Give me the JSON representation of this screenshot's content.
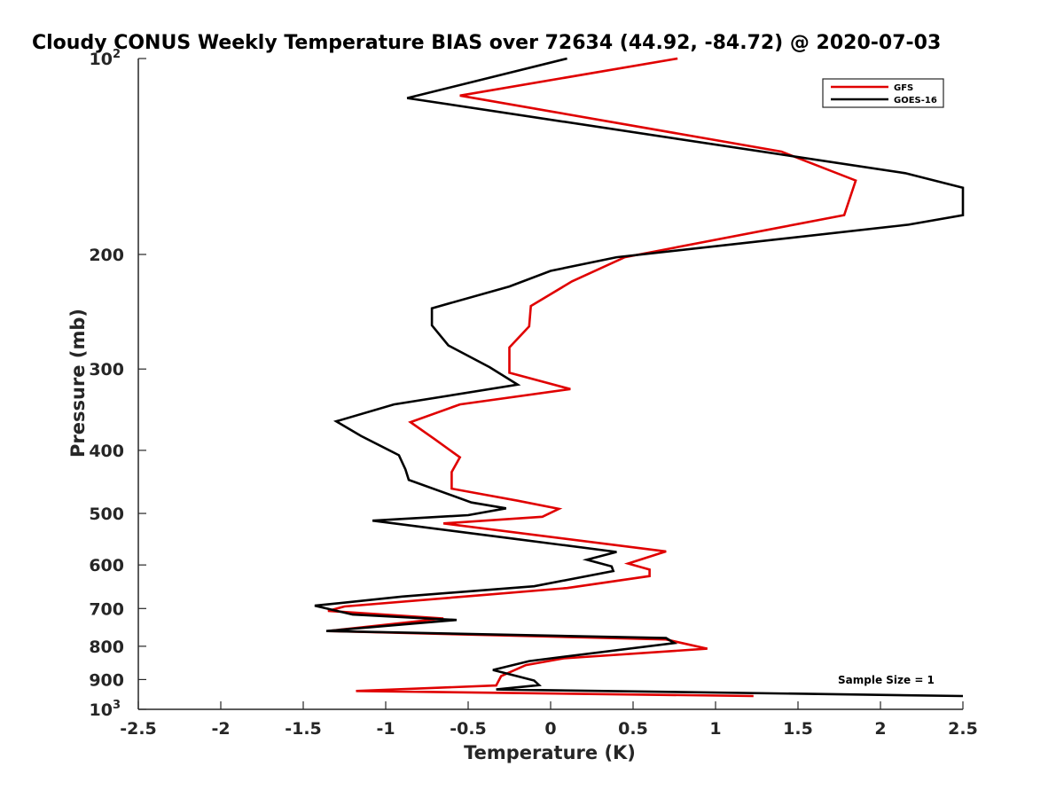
{
  "chart_data": {
    "type": "line",
    "title": "Cloudy CONUS Weekly Temperature BIAS over 72634 (44.92, -84.72) @ 2020-07-03",
    "xlabel": "Temperature (K)",
    "ylabel": "Pressure (mb)",
    "xlim": [
      -2.5,
      2.5
    ],
    "ylim": [
      100,
      1000
    ],
    "y_scale": "log",
    "y_reversed": true,
    "x_ticks": [
      "-2.5",
      "-2",
      "-1.5",
      "-1",
      "-0.5",
      "0",
      "0.5",
      "1",
      "1.5",
      "2",
      "2.5"
    ],
    "y_ticks": [
      {
        "value": 100,
        "label": "10",
        "exp": "2"
      },
      {
        "value": 200,
        "label": "200",
        "exp": ""
      },
      {
        "value": 300,
        "label": "300",
        "exp": ""
      },
      {
        "value": 400,
        "label": "400",
        "exp": ""
      },
      {
        "value": 500,
        "label": "500",
        "exp": ""
      },
      {
        "value": 600,
        "label": "600",
        "exp": ""
      },
      {
        "value": 700,
        "label": "700",
        "exp": ""
      },
      {
        "value": 800,
        "label": "800",
        "exp": ""
      },
      {
        "value": 900,
        "label": "900",
        "exp": ""
      },
      {
        "value": 1000,
        "label": "10",
        "exp": "3"
      }
    ],
    "grid": false,
    "legend_position": "top-right",
    "annotation": "Sample Size = 1",
    "series": [
      {
        "name": "GFS",
        "color": "#e00000",
        "points": [
          [
            0.77,
            100
          ],
          [
            -0.55,
            114
          ],
          [
            1.4,
            139
          ],
          [
            1.85,
            154
          ],
          [
            1.78,
            174
          ],
          [
            0.45,
            202
          ],
          [
            0.13,
            220
          ],
          [
            -0.12,
            240
          ],
          [
            -0.13,
            258
          ],
          [
            -0.25,
            278
          ],
          [
            -0.25,
            304
          ],
          [
            0.12,
            322
          ],
          [
            -0.55,
            340
          ],
          [
            -0.85,
            362
          ],
          [
            -0.7,
            385
          ],
          [
            -0.55,
            410
          ],
          [
            -0.6,
            432
          ],
          [
            -0.6,
            458
          ],
          [
            -0.2,
            478
          ],
          [
            0.05,
            492
          ],
          [
            -0.05,
            506
          ],
          [
            -0.65,
            518
          ],
          [
            0.7,
            572
          ],
          [
            0.47,
            597
          ],
          [
            0.6,
            610
          ],
          [
            0.6,
            624
          ],
          [
            0.1,
            651
          ],
          [
            -0.4,
            667
          ],
          [
            -1.25,
            695
          ],
          [
            -1.35,
            706
          ],
          [
            -0.65,
            725
          ],
          [
            -1.35,
            758
          ],
          [
            0.7,
            781
          ],
          [
            0.95,
            807
          ],
          [
            0.08,
            835
          ],
          [
            -0.15,
            855
          ],
          [
            -0.3,
            889
          ],
          [
            -0.33,
            919
          ],
          [
            -1.18,
            937
          ],
          [
            1.23,
            954
          ]
        ]
      },
      {
        "name": "GOES-16",
        "color": "#000000",
        "points": [
          [
            0.1,
            100
          ],
          [
            -0.87,
            115
          ],
          [
            2.15,
            150
          ],
          [
            2.55,
            158
          ],
          [
            2.55,
            174
          ],
          [
            2.17,
            180
          ],
          [
            0.4,
            202
          ],
          [
            0.0,
            212
          ],
          [
            -0.25,
            224
          ],
          [
            -0.72,
            242
          ],
          [
            -0.72,
            257
          ],
          [
            -0.62,
            276
          ],
          [
            -0.37,
            298
          ],
          [
            -0.2,
            317
          ],
          [
            -0.95,
            340
          ],
          [
            -1.3,
            361
          ],
          [
            -1.15,
            380
          ],
          [
            -0.92,
            407
          ],
          [
            -0.88,
            428
          ],
          [
            -0.86,
            444
          ],
          [
            -0.48,
            481
          ],
          [
            -0.27,
            491
          ],
          [
            -0.5,
            503
          ],
          [
            -1.08,
            513
          ],
          [
            -0.22,
            547
          ],
          [
            0.4,
            573
          ],
          [
            0.22,
            589
          ],
          [
            0.37,
            603
          ],
          [
            0.38,
            613
          ],
          [
            -0.1,
            647
          ],
          [
            -0.9,
            671
          ],
          [
            -1.43,
            693
          ],
          [
            -1.2,
            715
          ],
          [
            -0.57,
            729
          ],
          [
            -0.85,
            739
          ],
          [
            -1.36,
            758
          ],
          [
            0.7,
            777
          ],
          [
            0.75,
            791
          ],
          [
            -0.13,
            843
          ],
          [
            -0.35,
            870
          ],
          [
            -0.1,
            903
          ],
          [
            -0.07,
            918
          ],
          [
            -0.33,
            932
          ],
          [
            2.5,
            954
          ]
        ]
      }
    ]
  }
}
